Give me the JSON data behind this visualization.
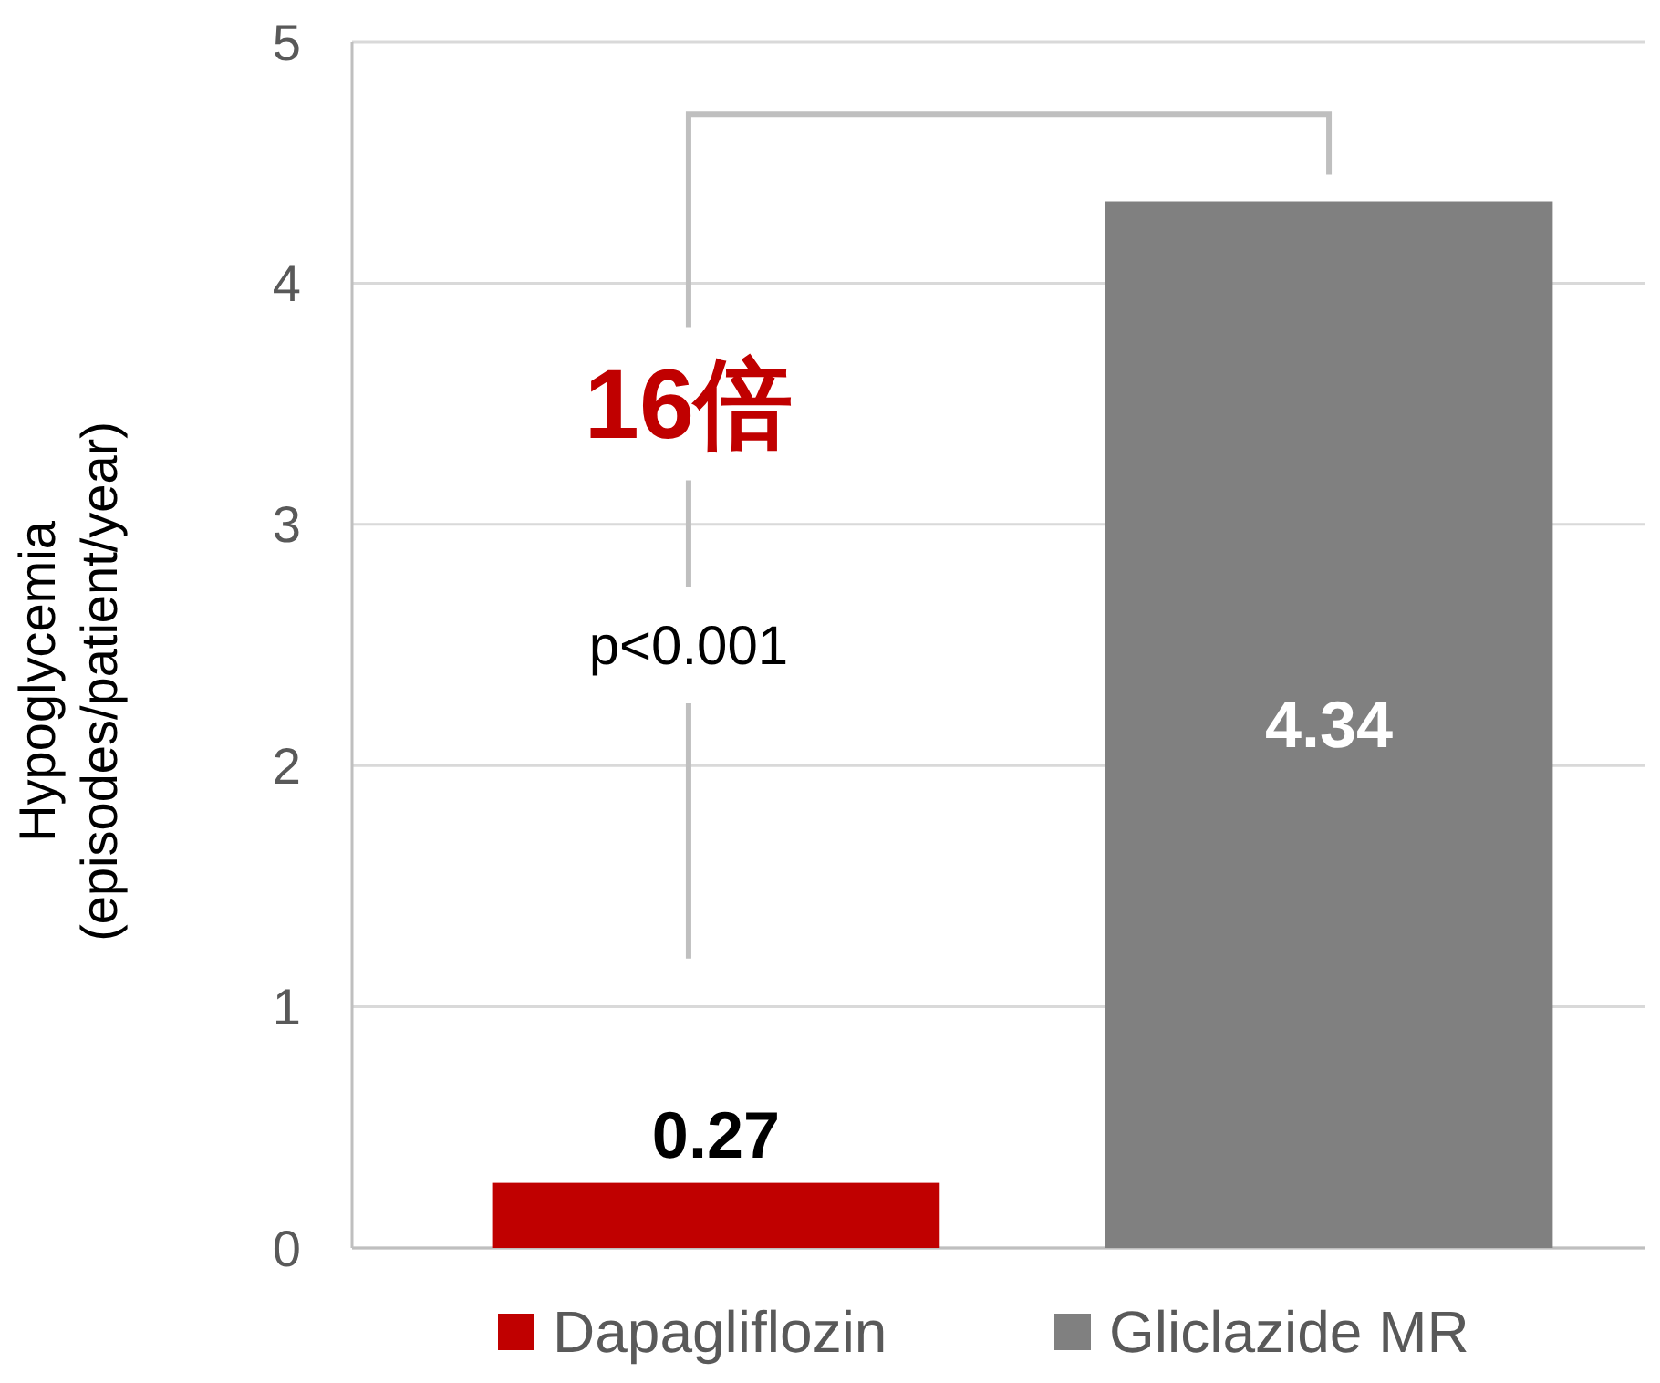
{
  "chart_data": {
    "type": "bar",
    "ylabel": "Hypoglycemia\n(episodes/patient/year)",
    "categories": [
      null,
      null
    ],
    "series": [
      {
        "name": "Dapagliflozin",
        "color": "#c00000",
        "values": [
          0.27,
          null
        ]
      },
      {
        "name": "Gliclazide MR",
        "color": "#808080",
        "values": [
          null,
          4.34
        ]
      }
    ],
    "ylim": [
      0,
      5
    ],
    "yticks": [
      0,
      1,
      2,
      3,
      4,
      5
    ],
    "grid": "y",
    "legend": "bottom",
    "data_labels": true,
    "annotations": [
      "16倍",
      "p<0.001"
    ]
  }
}
